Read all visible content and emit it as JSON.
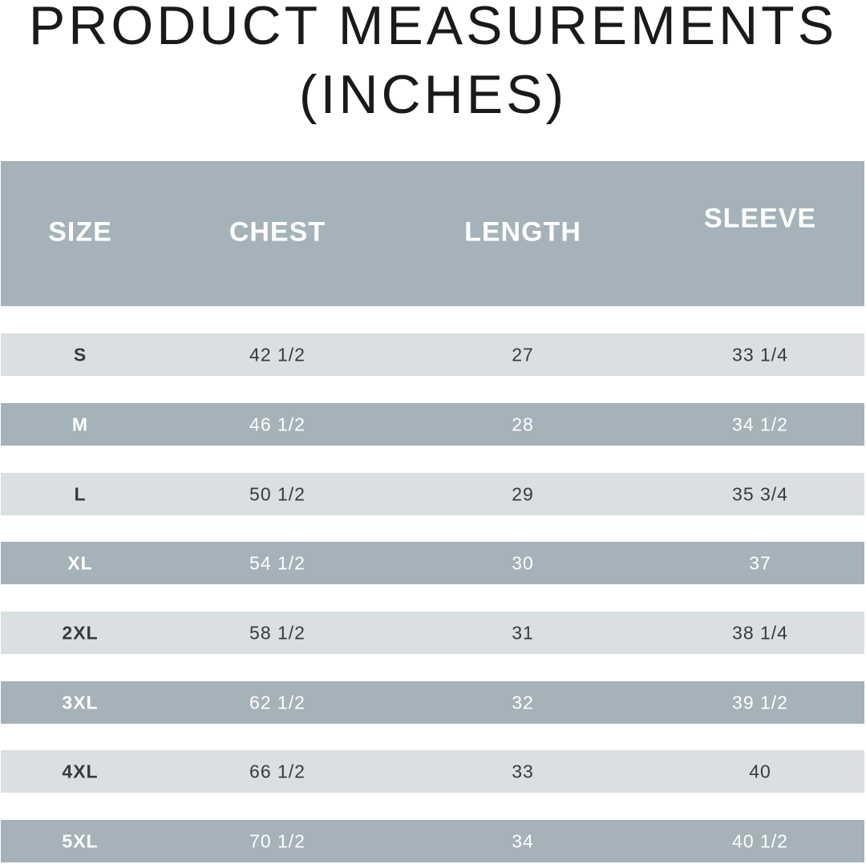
{
  "header": {
    "title_lines": [
      "PRODUCT MEASUREMENTS",
      "(INCHES)"
    ]
  },
  "table": {
    "columns": [
      "SIZE",
      "CHEST",
      "LENGTH",
      "SLEEVE"
    ],
    "rows": [
      [
        "S",
        "42 1/2",
        "27",
        "33 1/4"
      ],
      [
        "M",
        "46 1/2",
        "28",
        "34 1/2"
      ],
      [
        "L",
        "50 1/2",
        "29",
        "35 3/4"
      ],
      [
        "XL",
        "54 1/2",
        "30",
        "37"
      ],
      [
        "2XL",
        "58 1/2",
        "31",
        "38 1/4"
      ],
      [
        "3XL",
        "62 1/2",
        "32",
        "39 1/2"
      ],
      [
        "4XL",
        "66 1/2",
        "33",
        "40"
      ],
      [
        "5XL",
        "70 1/2",
        "34",
        "40 1/2"
      ]
    ]
  }
}
